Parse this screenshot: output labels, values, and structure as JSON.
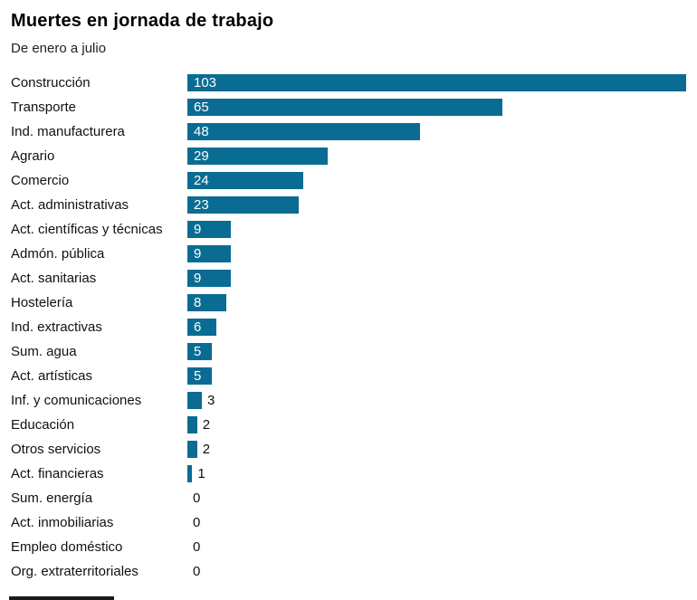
{
  "chart_data": {
    "type": "bar",
    "orientation": "horizontal",
    "title": "Muertes en jornada de trabajo",
    "subtitle": "De enero a julio",
    "categories": [
      "Construcción",
      "Transporte",
      "Ind. manufacturera",
      "Agrario",
      "Comercio",
      "Act. administrativas",
      "Act. científicas y técnicas",
      "Admón. pública",
      "Act. sanitarias",
      "Hostelería",
      "Ind. extractivas",
      "Sum. agua",
      "Act. artísticas",
      "Inf. y comunicaciones",
      "Educación",
      "Otros servicios",
      "Act. financieras",
      "Sum. energía",
      "Act. inmobiliarias",
      "Empleo doméstico",
      "Org. extraterritoriales"
    ],
    "values": [
      103,
      65,
      48,
      29,
      24,
      23,
      9,
      9,
      9,
      8,
      6,
      5,
      5,
      3,
      2,
      2,
      1,
      0,
      0,
      0,
      0
    ],
    "xlim": [
      0,
      103
    ],
    "bar_color": "#0a6c93",
    "inside_label_color": "#ffffff",
    "outside_label_color": "#111111",
    "inside_label_min_value": 5,
    "grid": false,
    "legend": false
  }
}
